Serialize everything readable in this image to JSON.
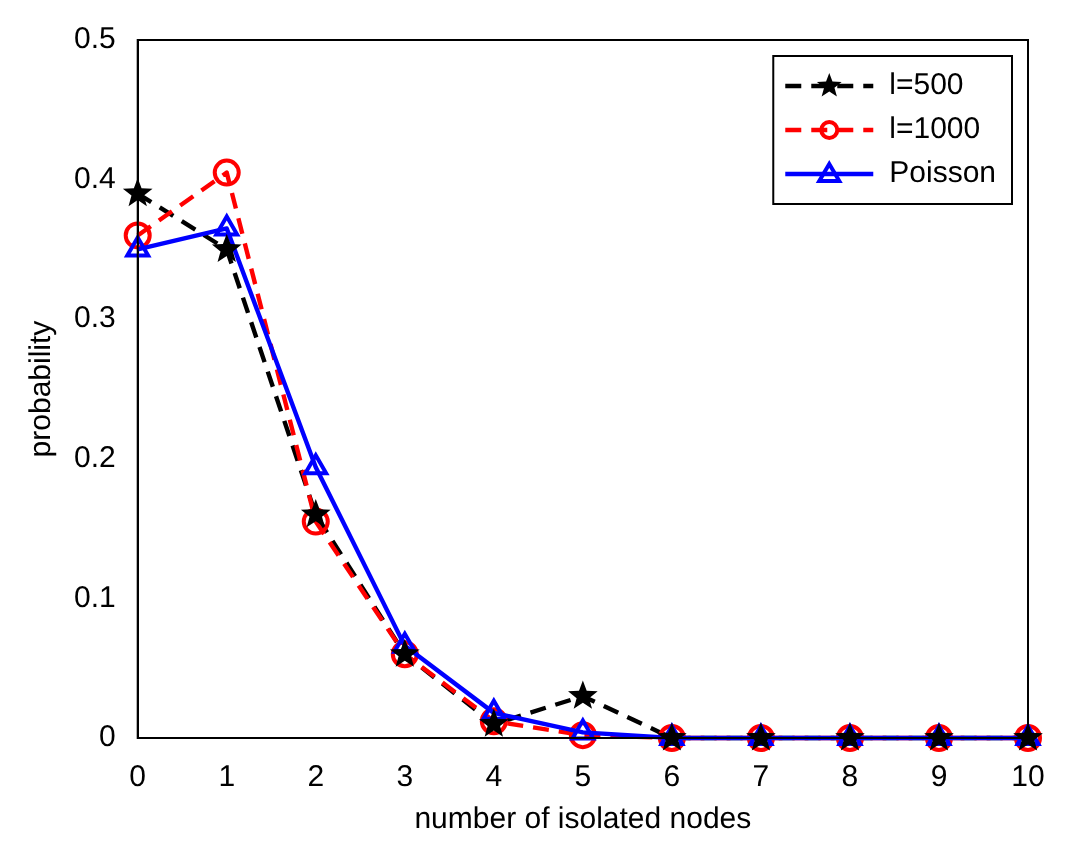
{
  "chart_data": {
    "type": "line",
    "xlabel": "number of isolated nodes",
    "ylabel": "probability",
    "x": [
      0,
      1,
      2,
      3,
      4,
      5,
      6,
      7,
      8,
      9,
      10
    ],
    "xlim": [
      0,
      10
    ],
    "xticks": [
      0,
      1,
      2,
      3,
      4,
      5,
      6,
      7,
      8,
      9,
      10
    ],
    "ylim": [
      0,
      0.5
    ],
    "yticks": [
      0,
      0.1,
      0.2,
      0.3,
      0.4,
      0.5
    ],
    "grid": false,
    "legend": "top right",
    "series": [
      {
        "name": "l=500",
        "color": "#000000",
        "marker": "star",
        "line_style": "dashed",
        "values": [
          0.39,
          0.35,
          0.16,
          0.06,
          0.01,
          0.03,
          0,
          0,
          0,
          0,
          0
        ]
      },
      {
        "name": "l=1000",
        "color": "#ff0000",
        "marker": "circle",
        "line_style": "dashed",
        "values": [
          0.36,
          0.405,
          0.155,
          0.06,
          0.012,
          0.002,
          0,
          0,
          0,
          0,
          0
        ]
      },
      {
        "name": "Poisson",
        "color": "#0000ff",
        "marker": "triangle",
        "line_style": "solid",
        "values": [
          0.35,
          0.365,
          0.194,
          0.066,
          0.018,
          0.004,
          0,
          0,
          0,
          0,
          0
        ]
      }
    ]
  }
}
